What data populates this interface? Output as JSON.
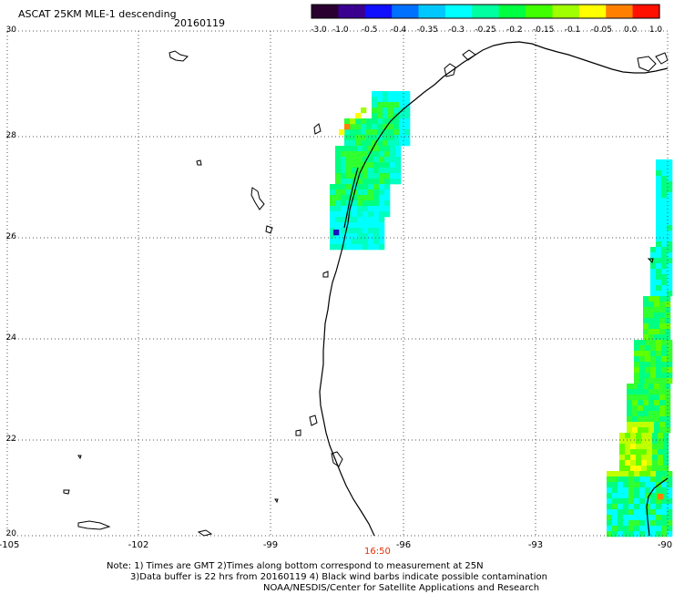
{
  "header": {
    "title": "ASCAT 25KM MLE-1 descending",
    "date": "20160119"
  },
  "colorbar": {
    "labels": [
      "-3.0",
      "-1.0",
      "-0.5",
      "-0.4",
      "-0.35",
      "-0.3",
      "-0.25",
      "-0.2",
      "-0.15",
      "-0.1",
      "-0.05",
      "0.0",
      "1.0"
    ],
    "colors": [
      "#2a0030",
      "#3a0090",
      "#1010ff",
      "#0070ff",
      "#00c8ff",
      "#00ffff",
      "#00ffa0",
      "#00ff40",
      "#40ff00",
      "#a0ff00",
      "#ffff00",
      "#ff8000",
      "#ff1000"
    ]
  },
  "axes": {
    "lat_labels": [
      "30",
      "28",
      "26",
      "24",
      "22",
      "20"
    ],
    "lon_labels": [
      "-105",
      "-102",
      "-99",
      "-96",
      "-93",
      "-90"
    ]
  },
  "time_label": "16:50",
  "time_color": "#e03000",
  "footer": {
    "note1": "Note: 1) Times are GMT 2)Times along bottom correspond to measurement at 25N",
    "note2": "3)Data buffer is 22 hrs from 20160119 4) Black wind barbs indicate possible contamination",
    "note3": "NOAA/NESDIS/Center for Satellite Applications and Research"
  },
  "swaths": [
    {
      "name": "texas-coast-swath",
      "colors": [
        "#00ffff",
        "#00ff80",
        "#30ff30",
        "#00ffc0",
        "#a0ff00",
        "#ffff00",
        "#ff8000",
        "#2010c0"
      ]
    },
    {
      "name": "gulf-east-swath",
      "colors": [
        "#00ffff",
        "#00ff80",
        "#30ff30",
        "#60ff00",
        "#c0ff00",
        "#ffff00",
        "#ff8000"
      ]
    }
  ]
}
